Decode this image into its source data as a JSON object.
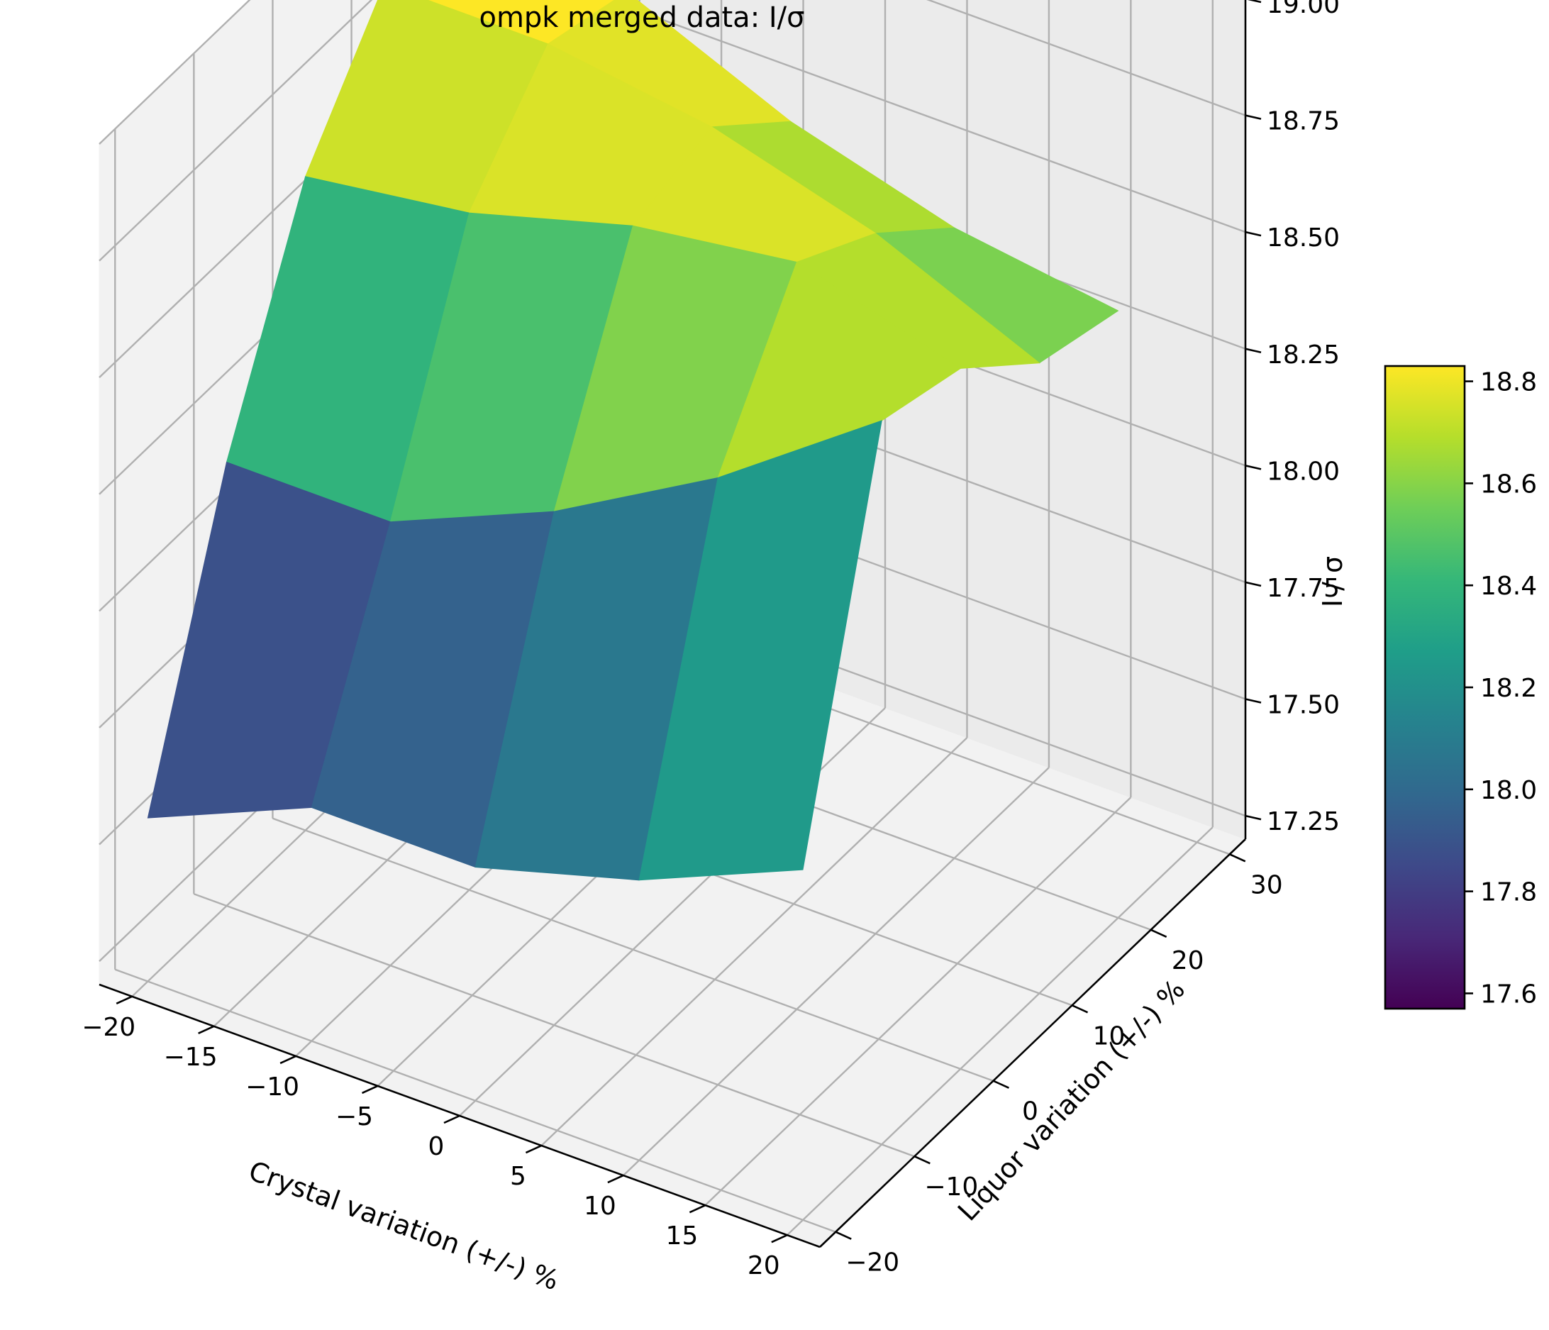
{
  "chart_data": {
    "type": "surface3d",
    "title": "ompk merged data: I/σ",
    "xlabel": "Crystal variation (+/-) %",
    "ylabel": "Liquor variation (+/-) %",
    "zlabel": "I / σ",
    "x": [
      -20,
      -10,
      0,
      10,
      20
    ],
    "y": [
      -20,
      -10,
      0,
      10,
      20
    ],
    "z": [
      [
        17.55,
        17.7,
        17.7,
        17.8,
        17.95
      ],
      [
        18.15,
        18.15,
        18.3,
        18.5,
        18.75
      ],
      [
        18.6,
        18.65,
        18.75,
        18.8,
        18.7
      ],
      [
        18.85,
        18.85,
        18.8,
        18.7,
        18.55
      ],
      [
        18.9,
        18.8,
        18.65,
        18.55,
        18.5
      ]
    ],
    "xlim": [
      -22,
      22
    ],
    "ylim": [
      -22,
      32
    ],
    "zlim": [
      17.2,
      19.0
    ],
    "x_ticks": [
      "−20",
      "−15",
      "−10",
      "−5",
      "0",
      "5",
      "10",
      "15",
      "20"
    ],
    "y_ticks": [
      "−20",
      "−10",
      "0",
      "10",
      "20",
      "30"
    ],
    "z_ticks": [
      "17.25",
      "17.50",
      "17.75",
      "18.00",
      "18.25",
      "18.50",
      "18.75",
      "19.00"
    ],
    "colorbar": {
      "min": 17.57,
      "max": 18.83,
      "ticks": [
        "17.6",
        "17.8",
        "18.0",
        "18.2",
        "18.4",
        "18.6",
        "18.8"
      ]
    },
    "colormap": [
      "#440154",
      "#482878",
      "#3e4989",
      "#31688e",
      "#26828e",
      "#1f9e89",
      "#35b779",
      "#6ece58",
      "#b5de2b",
      "#fde725"
    ],
    "grid": true
  }
}
